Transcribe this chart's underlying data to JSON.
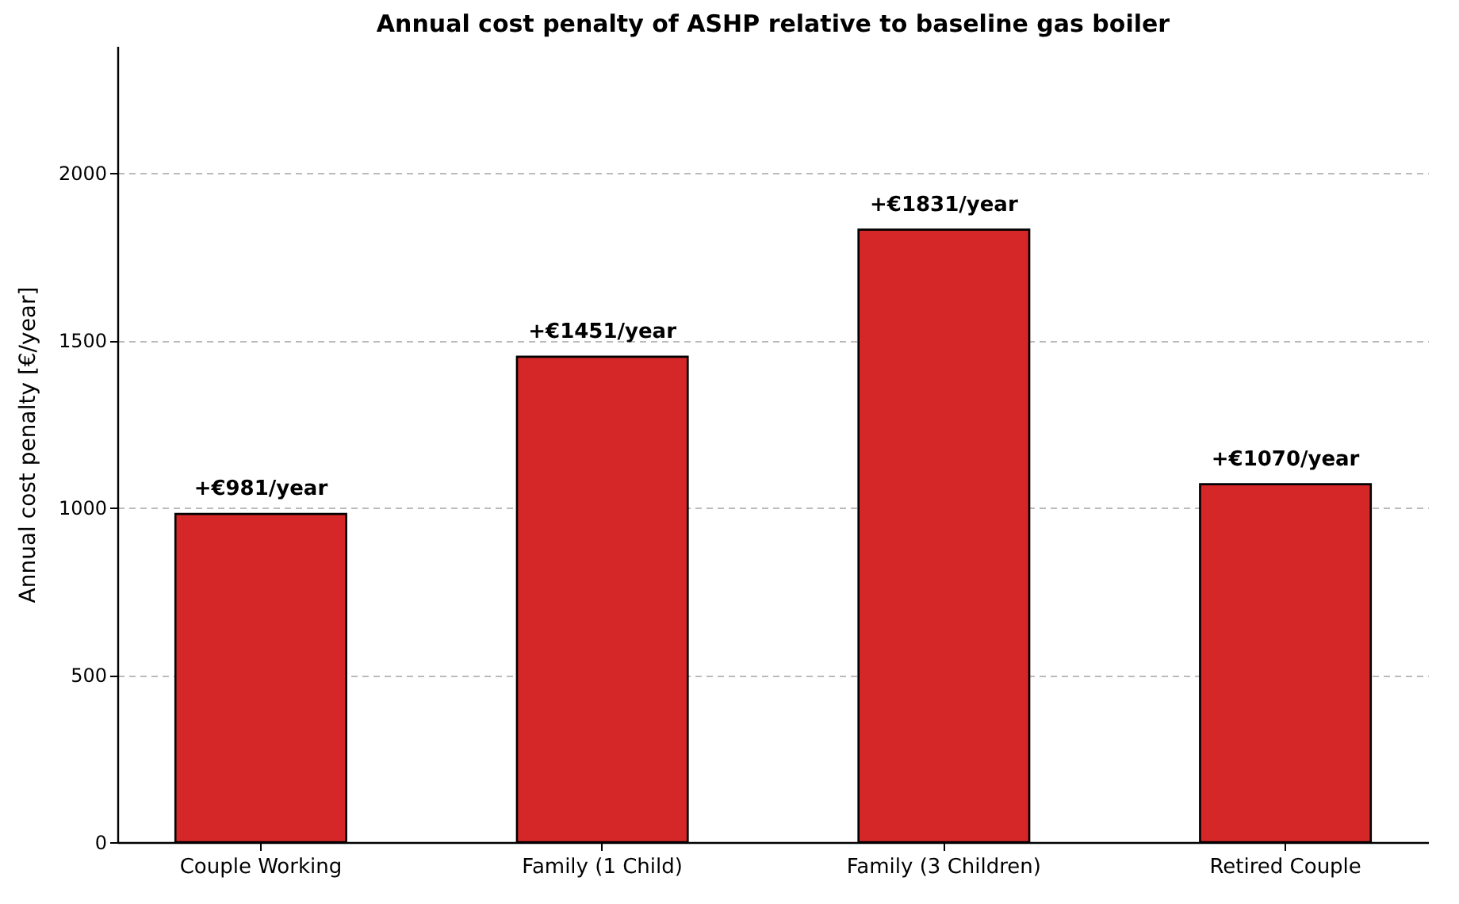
{
  "chart_data": {
    "type": "bar",
    "title": "Annual cost penalty of ASHP relative to baseline gas boiler",
    "ylabel": "Annual cost penalty [€/year]",
    "categories": [
      "Couple Working",
      "Family (1 Child)",
      "Family (3 Children)",
      "Retired Couple"
    ],
    "values": [
      981,
      1451,
      1831,
      1070
    ],
    "value_labels": [
      "+€981/year",
      "+€1451/year",
      "+€1831/year",
      "+€1070/year"
    ],
    "color": "#d62728",
    "ylim": [
      0,
      2380
    ],
    "yticks": [
      0,
      500,
      1000,
      1500,
      2000
    ],
    "grid": "y"
  }
}
